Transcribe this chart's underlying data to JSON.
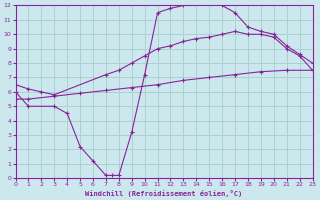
{
  "xlabel": "Windchill (Refroidissement éolien,°C)",
  "bg_color": "#cce8ee",
  "grid_color": "#a8d4cc",
  "line_color": "#882299",
  "xlim": [
    0,
    23
  ],
  "ylim": [
    0,
    12
  ],
  "xticks": [
    0,
    1,
    2,
    3,
    4,
    5,
    6,
    7,
    8,
    9,
    10,
    11,
    12,
    13,
    14,
    15,
    16,
    17,
    18,
    19,
    20,
    21,
    22,
    23
  ],
  "yticks": [
    0,
    1,
    2,
    3,
    4,
    5,
    6,
    7,
    8,
    9,
    10,
    11,
    12
  ],
  "line1_x": [
    0,
    1,
    3,
    4,
    5,
    6,
    7,
    7.5,
    8,
    9,
    10,
    11,
    12,
    13,
    14,
    15,
    16,
    17,
    18,
    19,
    20,
    21,
    22,
    23
  ],
  "line1_y": [
    6.0,
    5.0,
    5.0,
    4.5,
    2.2,
    1.2,
    0.2,
    0.2,
    0.2,
    3.2,
    7.2,
    11.5,
    11.8,
    12.0,
    12.2,
    12.2,
    12.0,
    11.5,
    10.5,
    10.2,
    10.0,
    9.2,
    8.6,
    8.0
  ],
  "line2_x": [
    0,
    1,
    2,
    3,
    7,
    8,
    9,
    10,
    11,
    12,
    13,
    14,
    15,
    16,
    17,
    18,
    19,
    20,
    21,
    22,
    23
  ],
  "line2_y": [
    6.5,
    6.2,
    6.0,
    5.8,
    7.2,
    7.5,
    8.0,
    8.5,
    9.0,
    9.2,
    9.5,
    9.7,
    9.8,
    10.0,
    10.2,
    10.0,
    10.0,
    9.8,
    9.0,
    8.5,
    7.5
  ],
  "line3_x": [
    0,
    1,
    3,
    5,
    7,
    9,
    11,
    13,
    15,
    17,
    19,
    21,
    23
  ],
  "line3_y": [
    5.5,
    5.5,
    5.7,
    5.9,
    6.1,
    6.3,
    6.5,
    6.8,
    7.0,
    7.2,
    7.4,
    7.5,
    7.5
  ]
}
